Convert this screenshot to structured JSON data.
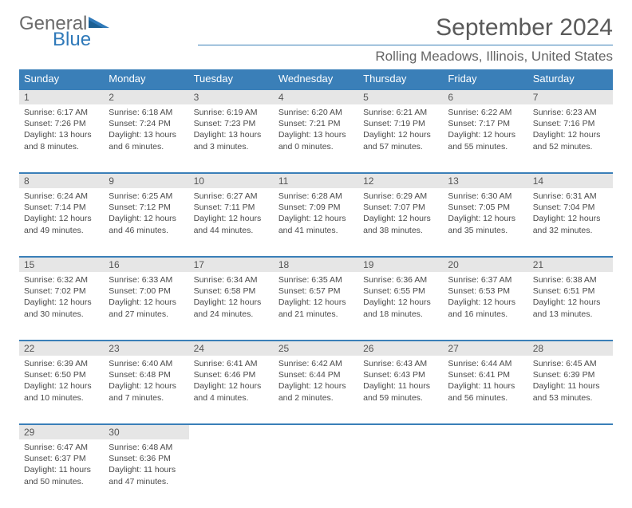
{
  "brand": {
    "general": "General",
    "blue": "Blue"
  },
  "title": "September 2024",
  "location": "Rolling Meadows, Illinois, United States",
  "colors": {
    "header_bg": "#3a7fb8",
    "header_text": "#ffffff",
    "daynum_bg": "#e6e6e6",
    "rule": "#3a7fb8",
    "logo_blue": "#2f79b9",
    "logo_gray": "#6b6b6b",
    "body_text": "#4a4a4a",
    "page_bg": "#ffffff"
  },
  "typography": {
    "title_fontsize": 30,
    "location_fontsize": 17,
    "weekday_fontsize": 13,
    "daynum_fontsize": 12,
    "detail_fontsize": 10.5
  },
  "weekdays": [
    "Sunday",
    "Monday",
    "Tuesday",
    "Wednesday",
    "Thursday",
    "Friday",
    "Saturday"
  ],
  "weeks": [
    [
      {
        "n": "1",
        "sr": "Sunrise: 6:17 AM",
        "ss": "Sunset: 7:26 PM",
        "dl": "Daylight: 13 hours and 8 minutes."
      },
      {
        "n": "2",
        "sr": "Sunrise: 6:18 AM",
        "ss": "Sunset: 7:24 PM",
        "dl": "Daylight: 13 hours and 6 minutes."
      },
      {
        "n": "3",
        "sr": "Sunrise: 6:19 AM",
        "ss": "Sunset: 7:23 PM",
        "dl": "Daylight: 13 hours and 3 minutes."
      },
      {
        "n": "4",
        "sr": "Sunrise: 6:20 AM",
        "ss": "Sunset: 7:21 PM",
        "dl": "Daylight: 13 hours and 0 minutes."
      },
      {
        "n": "5",
        "sr": "Sunrise: 6:21 AM",
        "ss": "Sunset: 7:19 PM",
        "dl": "Daylight: 12 hours and 57 minutes."
      },
      {
        "n": "6",
        "sr": "Sunrise: 6:22 AM",
        "ss": "Sunset: 7:17 PM",
        "dl": "Daylight: 12 hours and 55 minutes."
      },
      {
        "n": "7",
        "sr": "Sunrise: 6:23 AM",
        "ss": "Sunset: 7:16 PM",
        "dl": "Daylight: 12 hours and 52 minutes."
      }
    ],
    [
      {
        "n": "8",
        "sr": "Sunrise: 6:24 AM",
        "ss": "Sunset: 7:14 PM",
        "dl": "Daylight: 12 hours and 49 minutes."
      },
      {
        "n": "9",
        "sr": "Sunrise: 6:25 AM",
        "ss": "Sunset: 7:12 PM",
        "dl": "Daylight: 12 hours and 46 minutes."
      },
      {
        "n": "10",
        "sr": "Sunrise: 6:27 AM",
        "ss": "Sunset: 7:11 PM",
        "dl": "Daylight: 12 hours and 44 minutes."
      },
      {
        "n": "11",
        "sr": "Sunrise: 6:28 AM",
        "ss": "Sunset: 7:09 PM",
        "dl": "Daylight: 12 hours and 41 minutes."
      },
      {
        "n": "12",
        "sr": "Sunrise: 6:29 AM",
        "ss": "Sunset: 7:07 PM",
        "dl": "Daylight: 12 hours and 38 minutes."
      },
      {
        "n": "13",
        "sr": "Sunrise: 6:30 AM",
        "ss": "Sunset: 7:05 PM",
        "dl": "Daylight: 12 hours and 35 minutes."
      },
      {
        "n": "14",
        "sr": "Sunrise: 6:31 AM",
        "ss": "Sunset: 7:04 PM",
        "dl": "Daylight: 12 hours and 32 minutes."
      }
    ],
    [
      {
        "n": "15",
        "sr": "Sunrise: 6:32 AM",
        "ss": "Sunset: 7:02 PM",
        "dl": "Daylight: 12 hours and 30 minutes."
      },
      {
        "n": "16",
        "sr": "Sunrise: 6:33 AM",
        "ss": "Sunset: 7:00 PM",
        "dl": "Daylight: 12 hours and 27 minutes."
      },
      {
        "n": "17",
        "sr": "Sunrise: 6:34 AM",
        "ss": "Sunset: 6:58 PM",
        "dl": "Daylight: 12 hours and 24 minutes."
      },
      {
        "n": "18",
        "sr": "Sunrise: 6:35 AM",
        "ss": "Sunset: 6:57 PM",
        "dl": "Daylight: 12 hours and 21 minutes."
      },
      {
        "n": "19",
        "sr": "Sunrise: 6:36 AM",
        "ss": "Sunset: 6:55 PM",
        "dl": "Daylight: 12 hours and 18 minutes."
      },
      {
        "n": "20",
        "sr": "Sunrise: 6:37 AM",
        "ss": "Sunset: 6:53 PM",
        "dl": "Daylight: 12 hours and 16 minutes."
      },
      {
        "n": "21",
        "sr": "Sunrise: 6:38 AM",
        "ss": "Sunset: 6:51 PM",
        "dl": "Daylight: 12 hours and 13 minutes."
      }
    ],
    [
      {
        "n": "22",
        "sr": "Sunrise: 6:39 AM",
        "ss": "Sunset: 6:50 PM",
        "dl": "Daylight: 12 hours and 10 minutes."
      },
      {
        "n": "23",
        "sr": "Sunrise: 6:40 AM",
        "ss": "Sunset: 6:48 PM",
        "dl": "Daylight: 12 hours and 7 minutes."
      },
      {
        "n": "24",
        "sr": "Sunrise: 6:41 AM",
        "ss": "Sunset: 6:46 PM",
        "dl": "Daylight: 12 hours and 4 minutes."
      },
      {
        "n": "25",
        "sr": "Sunrise: 6:42 AM",
        "ss": "Sunset: 6:44 PM",
        "dl": "Daylight: 12 hours and 2 minutes."
      },
      {
        "n": "26",
        "sr": "Sunrise: 6:43 AM",
        "ss": "Sunset: 6:43 PM",
        "dl": "Daylight: 11 hours and 59 minutes."
      },
      {
        "n": "27",
        "sr": "Sunrise: 6:44 AM",
        "ss": "Sunset: 6:41 PM",
        "dl": "Daylight: 11 hours and 56 minutes."
      },
      {
        "n": "28",
        "sr": "Sunrise: 6:45 AM",
        "ss": "Sunset: 6:39 PM",
        "dl": "Daylight: 11 hours and 53 minutes."
      }
    ],
    [
      {
        "n": "29",
        "sr": "Sunrise: 6:47 AM",
        "ss": "Sunset: 6:37 PM",
        "dl": "Daylight: 11 hours and 50 minutes."
      },
      {
        "n": "30",
        "sr": "Sunrise: 6:48 AM",
        "ss": "Sunset: 6:36 PM",
        "dl": "Daylight: 11 hours and 47 minutes."
      },
      null,
      null,
      null,
      null,
      null
    ]
  ]
}
